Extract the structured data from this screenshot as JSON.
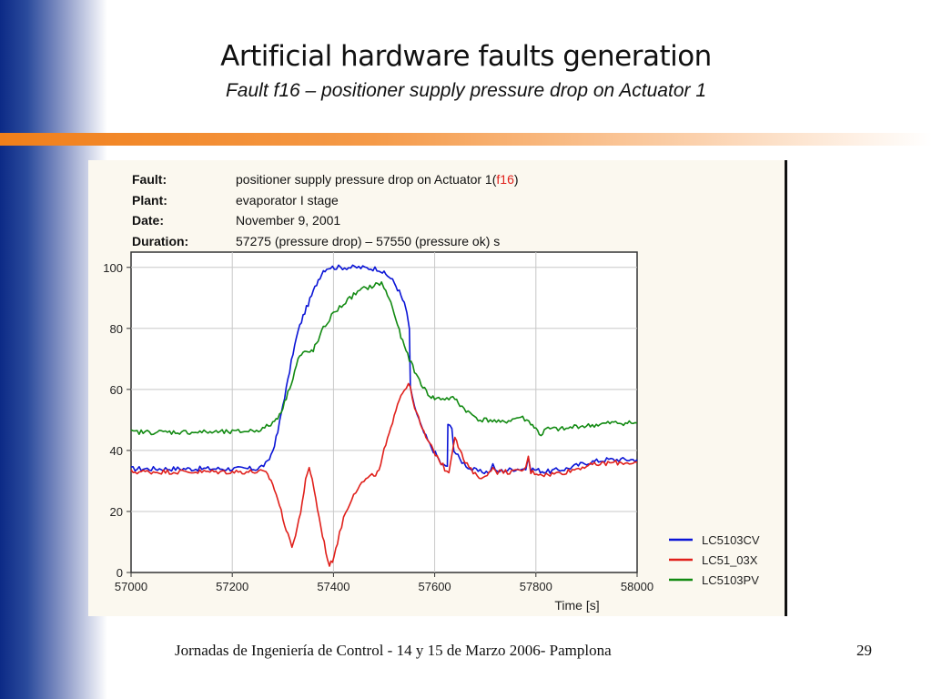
{
  "slide": {
    "title": "Artificial hardware faults generation",
    "subtitle": "Fault f16 – positioner supply pressure drop on Actuator 1",
    "footer": "Jornadas de Ingeniería de Control - 14 y 15 de Marzo 2006- Pamplona",
    "page_number": "29"
  },
  "info": {
    "fault_label": "Fault:",
    "fault_value": "positioner supply pressure drop on Actuator 1(",
    "fault_code": "f16",
    "fault_close": ")",
    "plant_label": "Plant:",
    "plant_value": "evaporator I stage",
    "date_label": "Date:",
    "date_value": "November 9, 2001",
    "duration_label": "Duration:",
    "duration_value": "57275 (pressure drop) – 57550 (pressure ok) s"
  },
  "chart_data": {
    "type": "line",
    "xlabel": "Time [s]",
    "ylabel": "",
    "xlim": [
      57000,
      58000
    ],
    "ylim": [
      0,
      105
    ],
    "x_ticks": [
      57000,
      57200,
      57400,
      57600,
      57800,
      58000
    ],
    "y_ticks": [
      0,
      20,
      40,
      60,
      80,
      100
    ],
    "grid": true,
    "legend_position": "bottom-right",
    "series": [
      {
        "name": "LC5103CV",
        "color": "#0a14d6",
        "points": [
          [
            57000,
            34
          ],
          [
            57100,
            34
          ],
          [
            57200,
            34
          ],
          [
            57250,
            34
          ],
          [
            57270,
            36
          ],
          [
            57280,
            40
          ],
          [
            57290,
            46
          ],
          [
            57300,
            55
          ],
          [
            57310,
            63
          ],
          [
            57320,
            72
          ],
          [
            57330,
            79
          ],
          [
            57340,
            84
          ],
          [
            57350,
            88
          ],
          [
            57360,
            92
          ],
          [
            57370,
            96
          ],
          [
            57380,
            99
          ],
          [
            57390,
            100
          ],
          [
            57450,
            100
          ],
          [
            57490,
            99.5
          ],
          [
            57500,
            98
          ],
          [
            57510,
            97
          ],
          [
            57520,
            95
          ],
          [
            57530,
            92
          ],
          [
            57540,
            88
          ],
          [
            57545,
            85
          ],
          [
            57550,
            80
          ],
          [
            57552,
            60
          ],
          [
            57556,
            57
          ],
          [
            57565,
            52
          ],
          [
            57575,
            47
          ],
          [
            57590,
            42
          ],
          [
            57605,
            38
          ],
          [
            57615,
            35
          ],
          [
            57625,
            35
          ],
          [
            57626,
            48
          ],
          [
            57634,
            48
          ],
          [
            57638,
            40
          ],
          [
            57650,
            37
          ],
          [
            57670,
            34
          ],
          [
            57690,
            33
          ],
          [
            57710,
            33
          ],
          [
            57715,
            36
          ],
          [
            57720,
            33
          ],
          [
            57760,
            34
          ],
          [
            57780,
            34
          ],
          [
            57785,
            37
          ],
          [
            57790,
            34
          ],
          [
            57820,
            33
          ],
          [
            57860,
            34
          ],
          [
            57880,
            35
          ],
          [
            57900,
            36
          ],
          [
            57940,
            37
          ],
          [
            58000,
            37
          ]
        ]
      },
      {
        "name": "LC51_03X",
        "color": "#e0201b",
        "points": [
          [
            57000,
            33
          ],
          [
            57100,
            33
          ],
          [
            57200,
            33
          ],
          [
            57260,
            33
          ],
          [
            57270,
            32
          ],
          [
            57280,
            29
          ],
          [
            57290,
            24
          ],
          [
            57300,
            18
          ],
          [
            57310,
            12
          ],
          [
            57318,
            9
          ],
          [
            57325,
            12
          ],
          [
            57335,
            20
          ],
          [
            57345,
            30
          ],
          [
            57352,
            34
          ],
          [
            57358,
            31
          ],
          [
            57365,
            24
          ],
          [
            57375,
            15
          ],
          [
            57385,
            7
          ],
          [
            57392,
            2
          ],
          [
            57398,
            4
          ],
          [
            57408,
            10
          ],
          [
            57420,
            18
          ],
          [
            57440,
            26
          ],
          [
            57460,
            30
          ],
          [
            57480,
            32
          ],
          [
            57490,
            33
          ],
          [
            57500,
            40
          ],
          [
            57510,
            45
          ],
          [
            57520,
            52
          ],
          [
            57530,
            57
          ],
          [
            57540,
            60
          ],
          [
            57548,
            62
          ],
          [
            57552,
            60
          ],
          [
            57556,
            57
          ],
          [
            57565,
            52
          ],
          [
            57575,
            47
          ],
          [
            57590,
            42
          ],
          [
            57605,
            38
          ],
          [
            57620,
            34
          ],
          [
            57628,
            33
          ],
          [
            57640,
            45
          ],
          [
            57650,
            40
          ],
          [
            57660,
            36
          ],
          [
            57680,
            32
          ],
          [
            57700,
            31
          ],
          [
            57715,
            35
          ],
          [
            57720,
            33
          ],
          [
            57760,
            33
          ],
          [
            57780,
            34
          ],
          [
            57785,
            38
          ],
          [
            57790,
            33
          ],
          [
            57820,
            32
          ],
          [
            57860,
            33
          ],
          [
            57900,
            35
          ],
          [
            57950,
            36
          ],
          [
            58000,
            36
          ]
        ]
      },
      {
        "name": "LC5103PV",
        "color": "#128a12",
        "points": [
          [
            57000,
            46
          ],
          [
            57100,
            46
          ],
          [
            57200,
            46
          ],
          [
            57240,
            46.5
          ],
          [
            57260,
            47
          ],
          [
            57280,
            49
          ],
          [
            57290,
            51
          ],
          [
            57300,
            54
          ],
          [
            57310,
            59
          ],
          [
            57320,
            64
          ],
          [
            57330,
            70
          ],
          [
            57340,
            72
          ],
          [
            57350,
            72
          ],
          [
            57360,
            73
          ],
          [
            57370,
            76
          ],
          [
            57380,
            80
          ],
          [
            57400,
            85
          ],
          [
            57420,
            88
          ],
          [
            57440,
            91
          ],
          [
            57460,
            93
          ],
          [
            57480,
            94
          ],
          [
            57495,
            95
          ],
          [
            57500,
            93
          ],
          [
            57510,
            90
          ],
          [
            57520,
            85
          ],
          [
            57530,
            79
          ],
          [
            57540,
            74
          ],
          [
            57550,
            70
          ],
          [
            57560,
            66
          ],
          [
            57570,
            63
          ],
          [
            57580,
            60
          ],
          [
            57590,
            58
          ],
          [
            57600,
            57
          ],
          [
            57620,
            57
          ],
          [
            57640,
            57
          ],
          [
            57650,
            55
          ],
          [
            57670,
            52
          ],
          [
            57690,
            50
          ],
          [
            57710,
            50
          ],
          [
            57730,
            49
          ],
          [
            57750,
            50
          ],
          [
            57770,
            51
          ],
          [
            57790,
            49
          ],
          [
            57800,
            47
          ],
          [
            57810,
            45
          ],
          [
            57820,
            47
          ],
          [
            57860,
            47
          ],
          [
            57880,
            48
          ],
          [
            57900,
            48
          ],
          [
            57950,
            49
          ],
          [
            58000,
            49
          ]
        ]
      }
    ]
  }
}
